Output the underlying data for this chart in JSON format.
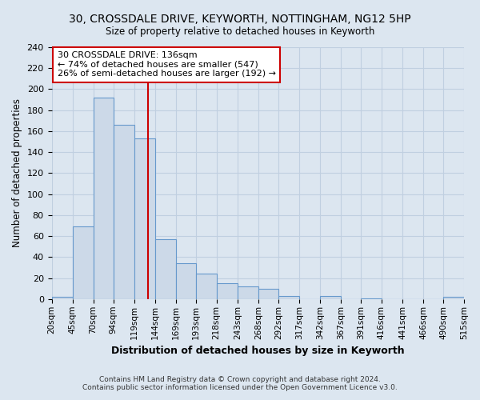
{
  "title": "30, CROSSDALE DRIVE, KEYWORTH, NOTTINGHAM, NG12 5HP",
  "subtitle": "Size of property relative to detached houses in Keyworth",
  "xlabel": "Distribution of detached houses by size in Keyworth",
  "ylabel": "Number of detached properties",
  "bar_values": [
    2,
    69,
    192,
    166,
    153,
    57,
    34,
    24,
    15,
    12,
    10,
    3,
    0,
    3,
    0,
    1,
    0,
    0,
    0,
    2
  ],
  "bin_edges": [
    20,
    45,
    70,
    94,
    119,
    144,
    169,
    193,
    218,
    243,
    268,
    292,
    317,
    342,
    367,
    391,
    416,
    441,
    466,
    490,
    515
  ],
  "tick_labels": [
    "20sqm",
    "45sqm",
    "70sqm",
    "94sqm",
    "119sqm",
    "144sqm",
    "169sqm",
    "193sqm",
    "218sqm",
    "243sqm",
    "268sqm",
    "292sqm",
    "317sqm",
    "342sqm",
    "367sqm",
    "391sqm",
    "416sqm",
    "441sqm",
    "466sqm",
    "490sqm",
    "515sqm"
  ],
  "bar_color": "#ccd9e8",
  "bar_edge_color": "#6699cc",
  "ylim": [
    0,
    240
  ],
  "yticks": [
    0,
    20,
    40,
    60,
    80,
    100,
    120,
    140,
    160,
    180,
    200,
    220,
    240
  ],
  "property_size": 136,
  "vline_color": "#cc0000",
  "annotation_title": "30 CROSSDALE DRIVE: 136sqm",
  "annotation_line1": "← 74% of detached houses are smaller (547)",
  "annotation_line2": "26% of semi-detached houses are larger (192) →",
  "annotation_box_color": "#ffffff",
  "annotation_box_edge": "#cc0000",
  "footer_line1": "Contains HM Land Registry data © Crown copyright and database right 2024.",
  "footer_line2": "Contains public sector information licensed under the Open Government Licence v3.0.",
  "background_color": "#dce6f0",
  "plot_background": "#dce6f0",
  "grid_color": "#c0cfe0"
}
